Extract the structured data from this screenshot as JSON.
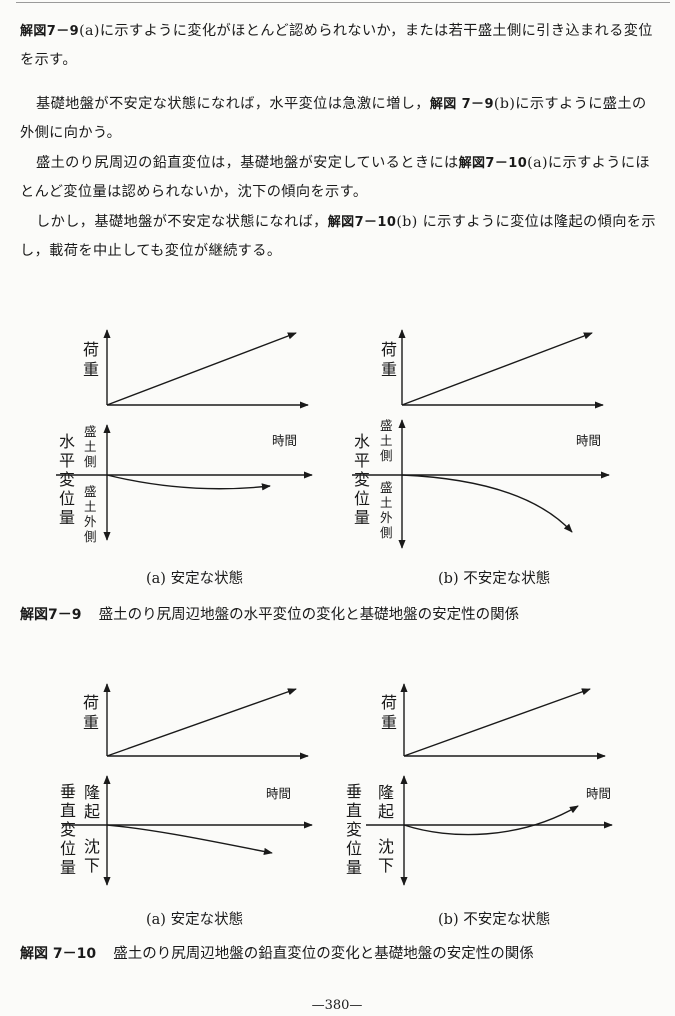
{
  "body": {
    "p1_ref": "解図7－9",
    "p1_text": "(a)に示すように変化がほとんど認められないか，または若干盛土側に引き込まれる変位を示す。",
    "p2_text_a": "基礎地盤が不安定な状態になれば，水平変位は急激に増し，",
    "p2_ref": "解図 7－9",
    "p2_text_b": "(b)に示すように盛土の外側に向かう。",
    "p3_text_a": "盛土のり尻周辺の鉛直変位は，基礎地盤が安定しているときには",
    "p3_ref": "解図7－10",
    "p3_text_b": "(a)に示すようにほとんど変位量は認められないか，沈下の傾向を示す。",
    "p4_text_a": "しかし，基礎地盤が不安定な状態になれば，",
    "p4_ref": "解図7－10",
    "p4_text_b": "(b) に示すように変位は隆起の傾向を示し，載荷を中止しても変位が継続する。"
  },
  "figure_7_9": {
    "load_label": [
      "荷",
      "重"
    ],
    "time_label": "時間",
    "vertical_axis_label": [
      "水",
      "平",
      "変",
      "位",
      "量"
    ],
    "upper_side_label": [
      "盛",
      "土",
      "側"
    ],
    "lower_side_label": [
      "盛",
      "土",
      "外",
      "側"
    ],
    "sub_a": "(a) 安定な状態",
    "sub_b": "(b) 不安定な状態",
    "caption_num": "解図7－9",
    "caption_text": "盛土のり尻周辺地盤の水平変位の変化と基礎地盤の安定性の関係"
  },
  "figure_7_10": {
    "load_label": [
      "荷",
      "重"
    ],
    "time_label": "時間",
    "vertical_axis_label": [
      "垂",
      "直",
      "変",
      "位",
      "量"
    ],
    "upper_side_label": [
      "隆",
      "起"
    ],
    "lower_side_label": [
      "沈",
      "下"
    ],
    "sub_a": "(a) 安定な状態",
    "sub_b": "(b) 不安定な状態",
    "caption_num": "解図 7－10",
    "caption_text": "盛土のり尻周辺地盤の鉛直変位の変化と基礎地盤の安定性の関係"
  },
  "page_number": "—380—"
}
